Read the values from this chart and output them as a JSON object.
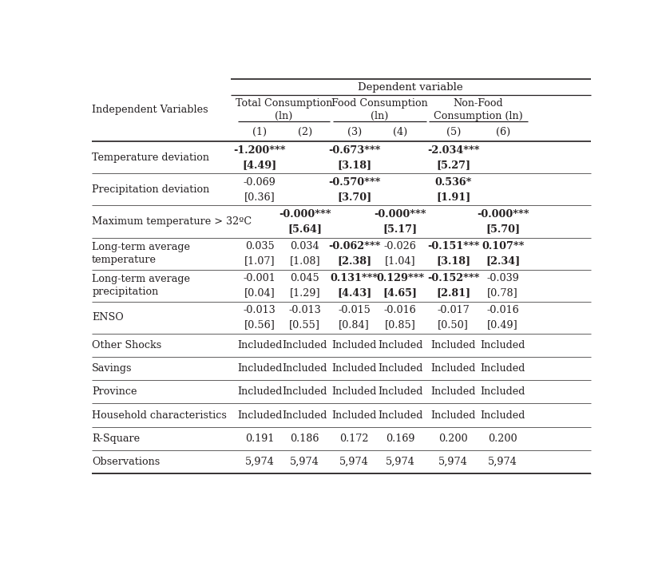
{
  "title": "Dependent variable",
  "group_labels": [
    "Total Consumption\n(ln)",
    "Food Consumption\n(ln)",
    "Non-Food\nConsumption (ln)"
  ],
  "col_numbers": [
    "(1)",
    "(2)",
    "(3)",
    "(4)",
    "(5)",
    "(6)"
  ],
  "independent_var_label": "Independent Variables",
  "rows": [
    {
      "label": "Temperature deviation",
      "label2": "",
      "coeff": [
        "-1.200***",
        "",
        "-0.673***",
        "",
        "-2.034***",
        ""
      ],
      "coeff_bold": [
        true,
        false,
        true,
        false,
        true,
        false
      ],
      "tstat": [
        "[4.49]",
        "",
        "[3.18]",
        "",
        "[5.27]",
        ""
      ],
      "tstat_bold": [
        true,
        false,
        true,
        false,
        true,
        false
      ]
    },
    {
      "label": "Precipitation deviation",
      "label2": "",
      "coeff": [
        "-0.069",
        "",
        "-0.570***",
        "",
        "0.536*",
        ""
      ],
      "coeff_bold": [
        false,
        false,
        true,
        false,
        true,
        false
      ],
      "tstat": [
        "[0.36]",
        "",
        "[3.70]",
        "",
        "[1.91]",
        ""
      ],
      "tstat_bold": [
        false,
        false,
        true,
        false,
        true,
        false
      ]
    },
    {
      "label": "Maximum temperature > 32ºC",
      "label2": "",
      "coeff": [
        "",
        "-0.000***",
        "",
        "-0.000***",
        "",
        "-0.000***"
      ],
      "coeff_bold": [
        false,
        true,
        false,
        true,
        false,
        true
      ],
      "tstat": [
        "",
        "[5.64]",
        "",
        "[5.17]",
        "",
        "[5.70]"
      ],
      "tstat_bold": [
        false,
        true,
        false,
        true,
        false,
        true
      ]
    },
    {
      "label": "Long-term average",
      "label2": "temperature",
      "coeff": [
        "0.035",
        "0.034",
        "-0.062***",
        "-0.026",
        "-0.151***",
        "0.107**"
      ],
      "coeff_bold": [
        false,
        false,
        true,
        false,
        true,
        true
      ],
      "tstat": [
        "[1.07]",
        "[1.08]",
        "[2.38]",
        "[1.04]",
        "[3.18]",
        "[2.34]"
      ],
      "tstat_bold": [
        false,
        false,
        true,
        false,
        true,
        true
      ]
    },
    {
      "label": "Long-term average",
      "label2": "precipitation",
      "coeff": [
        "-0.001",
        "0.045",
        "0.131***",
        "0.129***",
        "-0.152***",
        "-0.039"
      ],
      "coeff_bold": [
        false,
        false,
        true,
        true,
        true,
        false
      ],
      "tstat": [
        "[0.04]",
        "[1.29]",
        "[4.43]",
        "[4.65]",
        "[2.81]",
        "[0.78]"
      ],
      "tstat_bold": [
        false,
        false,
        true,
        true,
        true,
        false
      ]
    },
    {
      "label": "ENSO",
      "label2": "",
      "coeff": [
        "-0.013",
        "-0.013",
        "-0.015",
        "-0.016",
        "-0.017",
        "-0.016"
      ],
      "coeff_bold": [
        false,
        false,
        false,
        false,
        false,
        false
      ],
      "tstat": [
        "[0.56]",
        "[0.55]",
        "[0.84]",
        "[0.85]",
        "[0.50]",
        "[0.49]"
      ],
      "tstat_bold": [
        false,
        false,
        false,
        false,
        false,
        false
      ]
    },
    {
      "label": "Other Shocks",
      "label2": "",
      "coeff": [
        "Included",
        "Included",
        "Included",
        "Included",
        "Included",
        "Included"
      ],
      "coeff_bold": [
        false,
        false,
        false,
        false,
        false,
        false
      ],
      "tstat": [
        "",
        "",
        "",
        "",
        "",
        ""
      ],
      "tstat_bold": [
        false,
        false,
        false,
        false,
        false,
        false
      ]
    },
    {
      "label": "Savings",
      "label2": "",
      "coeff": [
        "Included",
        "Included",
        "Included",
        "Included",
        "Included",
        "Included"
      ],
      "coeff_bold": [
        false,
        false,
        false,
        false,
        false,
        false
      ],
      "tstat": [
        "",
        "",
        "",
        "",
        "",
        ""
      ],
      "tstat_bold": [
        false,
        false,
        false,
        false,
        false,
        false
      ]
    },
    {
      "label": "Province",
      "label2": "",
      "coeff": [
        "Included",
        "Included",
        "Included",
        "Included",
        "Included",
        "Included"
      ],
      "coeff_bold": [
        false,
        false,
        false,
        false,
        false,
        false
      ],
      "tstat": [
        "",
        "",
        "",
        "",
        "",
        ""
      ],
      "tstat_bold": [
        false,
        false,
        false,
        false,
        false,
        false
      ]
    },
    {
      "label": "Household characteristics",
      "label2": "",
      "coeff": [
        "Included",
        "Included",
        "Included",
        "Included",
        "Included",
        "Included"
      ],
      "coeff_bold": [
        false,
        false,
        false,
        false,
        false,
        false
      ],
      "tstat": [
        "",
        "",
        "",
        "",
        "",
        ""
      ],
      "tstat_bold": [
        false,
        false,
        false,
        false,
        false,
        false
      ]
    },
    {
      "label": "R-Square",
      "label2": "",
      "coeff": [
        "0.191",
        "0.186",
        "0.172",
        "0.169",
        "0.200",
        "0.200"
      ],
      "coeff_bold": [
        false,
        false,
        false,
        false,
        false,
        false
      ],
      "tstat": [
        "",
        "",
        "",
        "",
        "",
        ""
      ],
      "tstat_bold": [
        false,
        false,
        false,
        false,
        false,
        false
      ]
    },
    {
      "label": "Observations",
      "label2": "",
      "coeff": [
        "5,974",
        "5,974",
        "5,974",
        "5,974",
        "5,974",
        "5,974"
      ],
      "coeff_bold": [
        false,
        false,
        false,
        false,
        false,
        false
      ],
      "tstat": [
        "",
        "",
        "",
        "",
        "",
        ""
      ],
      "tstat_bold": [
        false,
        false,
        false,
        false,
        false,
        false
      ]
    }
  ],
  "background_color": "#ffffff",
  "text_color": "#231f20",
  "line_color": "#231f20",
  "font_family": "DejaVu Serif",
  "font_size": 9.2
}
